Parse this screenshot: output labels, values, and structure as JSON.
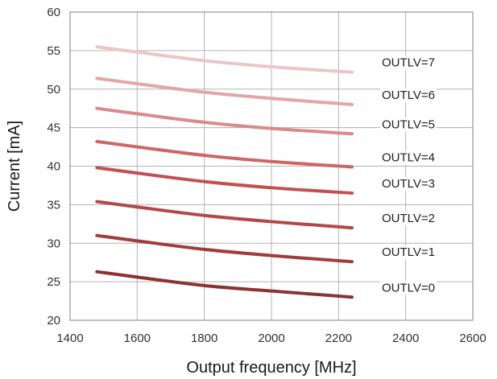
{
  "chart_data": {
    "type": "line",
    "title": "",
    "xlabel": "Output frequency [MHz]",
    "ylabel": "Current [mA]",
    "xlim": [
      1400,
      2600
    ],
    "ylim": [
      20,
      60
    ],
    "xticks": [
      1400,
      1600,
      1800,
      2000,
      2200,
      2400,
      2600
    ],
    "yticks": [
      20,
      25,
      30,
      35,
      40,
      45,
      50,
      55,
      60
    ],
    "grid": true,
    "legend": "inline-right",
    "x": [
      1480,
      1600,
      1800,
      2000,
      2240
    ],
    "series": [
      {
        "name": "OUTLV=0",
        "color": "#8b3232",
        "values": [
          26.3,
          25.6,
          24.5,
          23.8,
          23.0
        ]
      },
      {
        "name": "OUTLV=1",
        "color": "#a13c3c",
        "values": [
          31.0,
          30.3,
          29.2,
          28.4,
          27.6
        ]
      },
      {
        "name": "OUTLV=2",
        "color": "#b34848",
        "values": [
          35.4,
          34.7,
          33.6,
          32.8,
          32.0
        ]
      },
      {
        "name": "OUTLV=3",
        "color": "#c25050",
        "values": [
          39.8,
          39.1,
          38.0,
          37.2,
          36.5
        ]
      },
      {
        "name": "OUTLV=4",
        "color": "#cf6565",
        "values": [
          43.2,
          42.5,
          41.4,
          40.6,
          39.9
        ]
      },
      {
        "name": "OUTLV=5",
        "color": "#d98a8a",
        "values": [
          47.5,
          46.8,
          45.7,
          44.9,
          44.2
        ]
      },
      {
        "name": "OUTLV=6",
        "color": "#e2a6a6",
        "values": [
          51.4,
          50.7,
          49.6,
          48.8,
          48.0
        ]
      },
      {
        "name": "OUTLV=7",
        "color": "#ecc6c6",
        "values": [
          55.5,
          54.8,
          53.7,
          52.9,
          52.2
        ]
      }
    ]
  }
}
